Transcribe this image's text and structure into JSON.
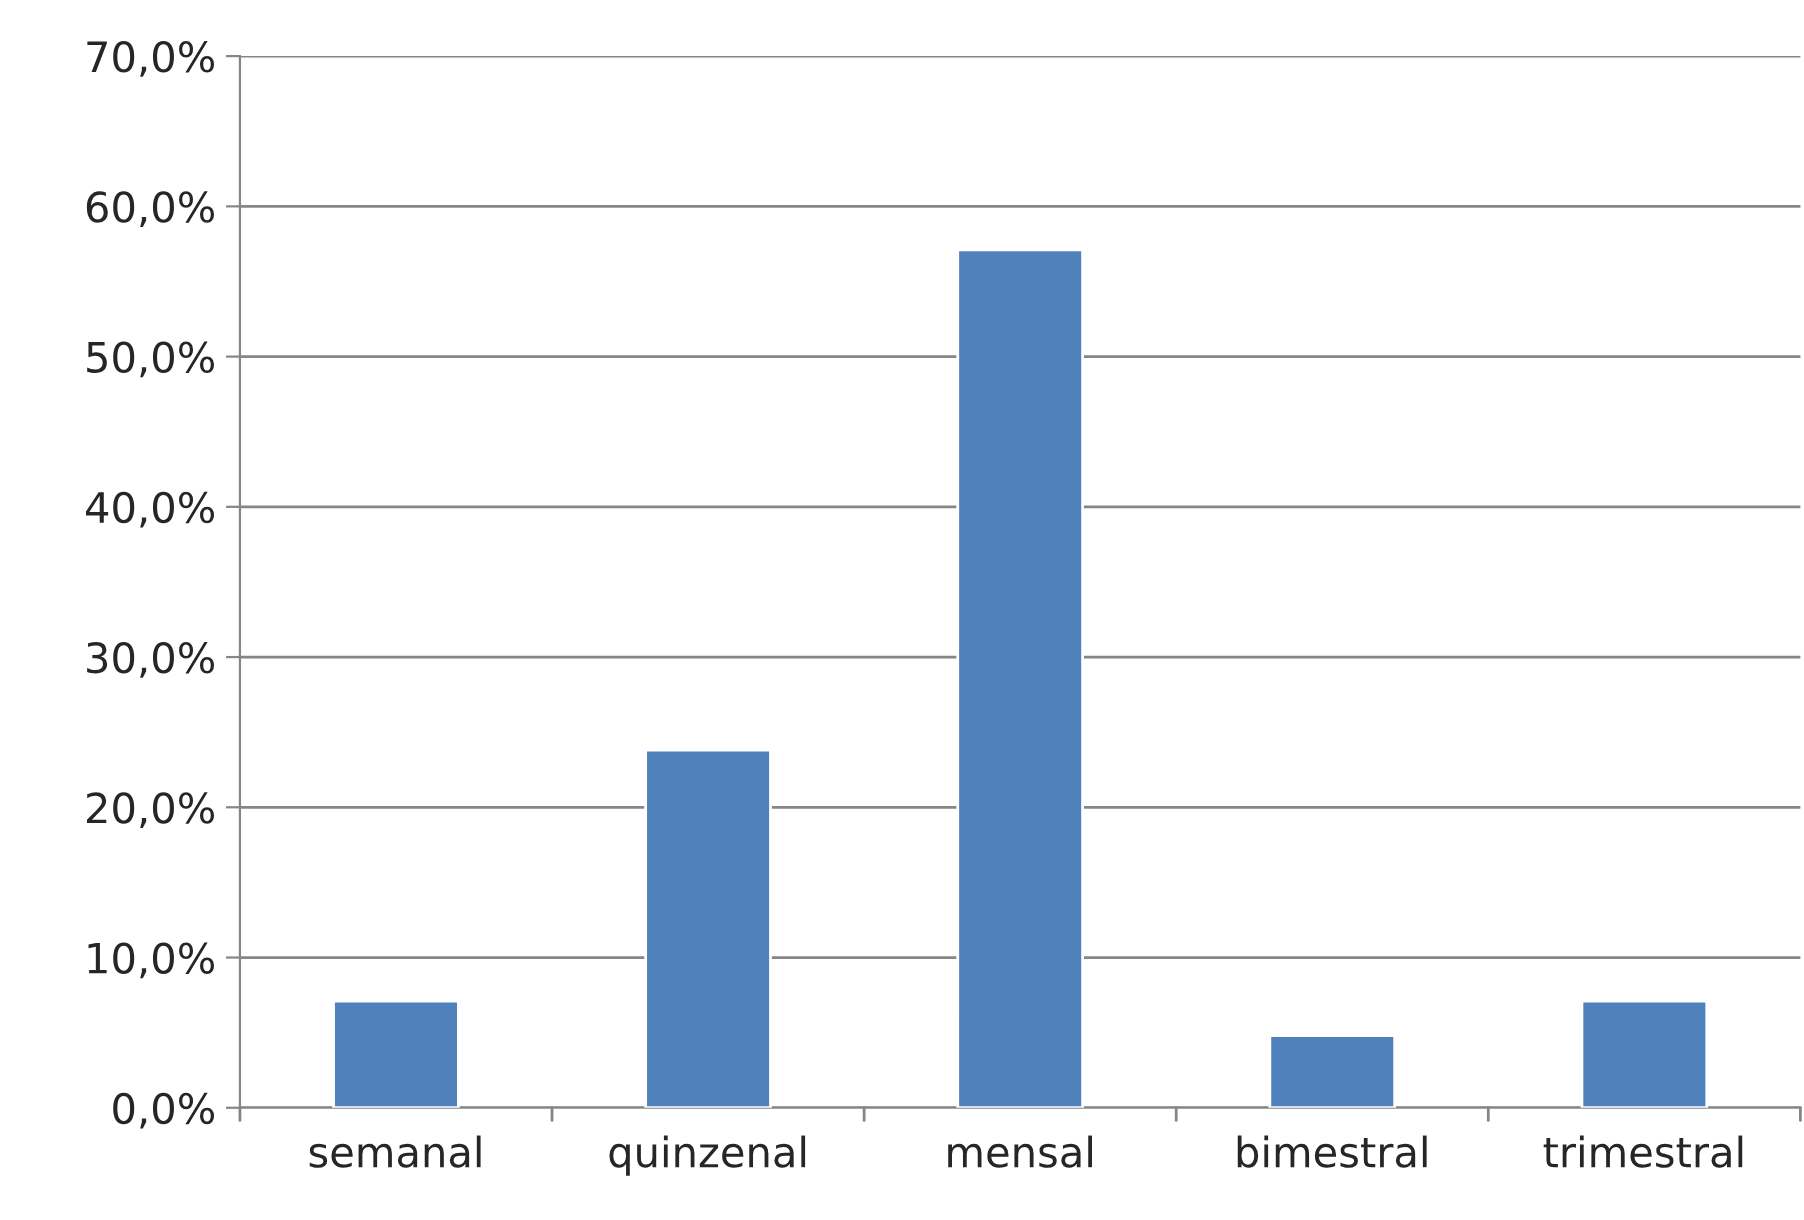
{
  "chart_data": {
    "type": "bar",
    "categories": [
      "semanal",
      "quinzenal",
      "mensal",
      "bimestral",
      "trimestral"
    ],
    "values": [
      7.1,
      23.8,
      57.1,
      4.8,
      7.1
    ],
    "color": "#4f81bd",
    "ylim": [
      0,
      70
    ],
    "yticks": [
      {
        "value": 0,
        "label": "0,0%"
      },
      {
        "value": 10,
        "label": "10,0%"
      },
      {
        "value": 20,
        "label": "20,0%"
      },
      {
        "value": 30,
        "label": "30,0%"
      },
      {
        "value": 40,
        "label": "40,0%"
      },
      {
        "value": 50,
        "label": "50,0%"
      },
      {
        "value": 60,
        "label": "60,0%"
      },
      {
        "value": 70,
        "label": "70,0%"
      }
    ],
    "grid": "y"
  }
}
